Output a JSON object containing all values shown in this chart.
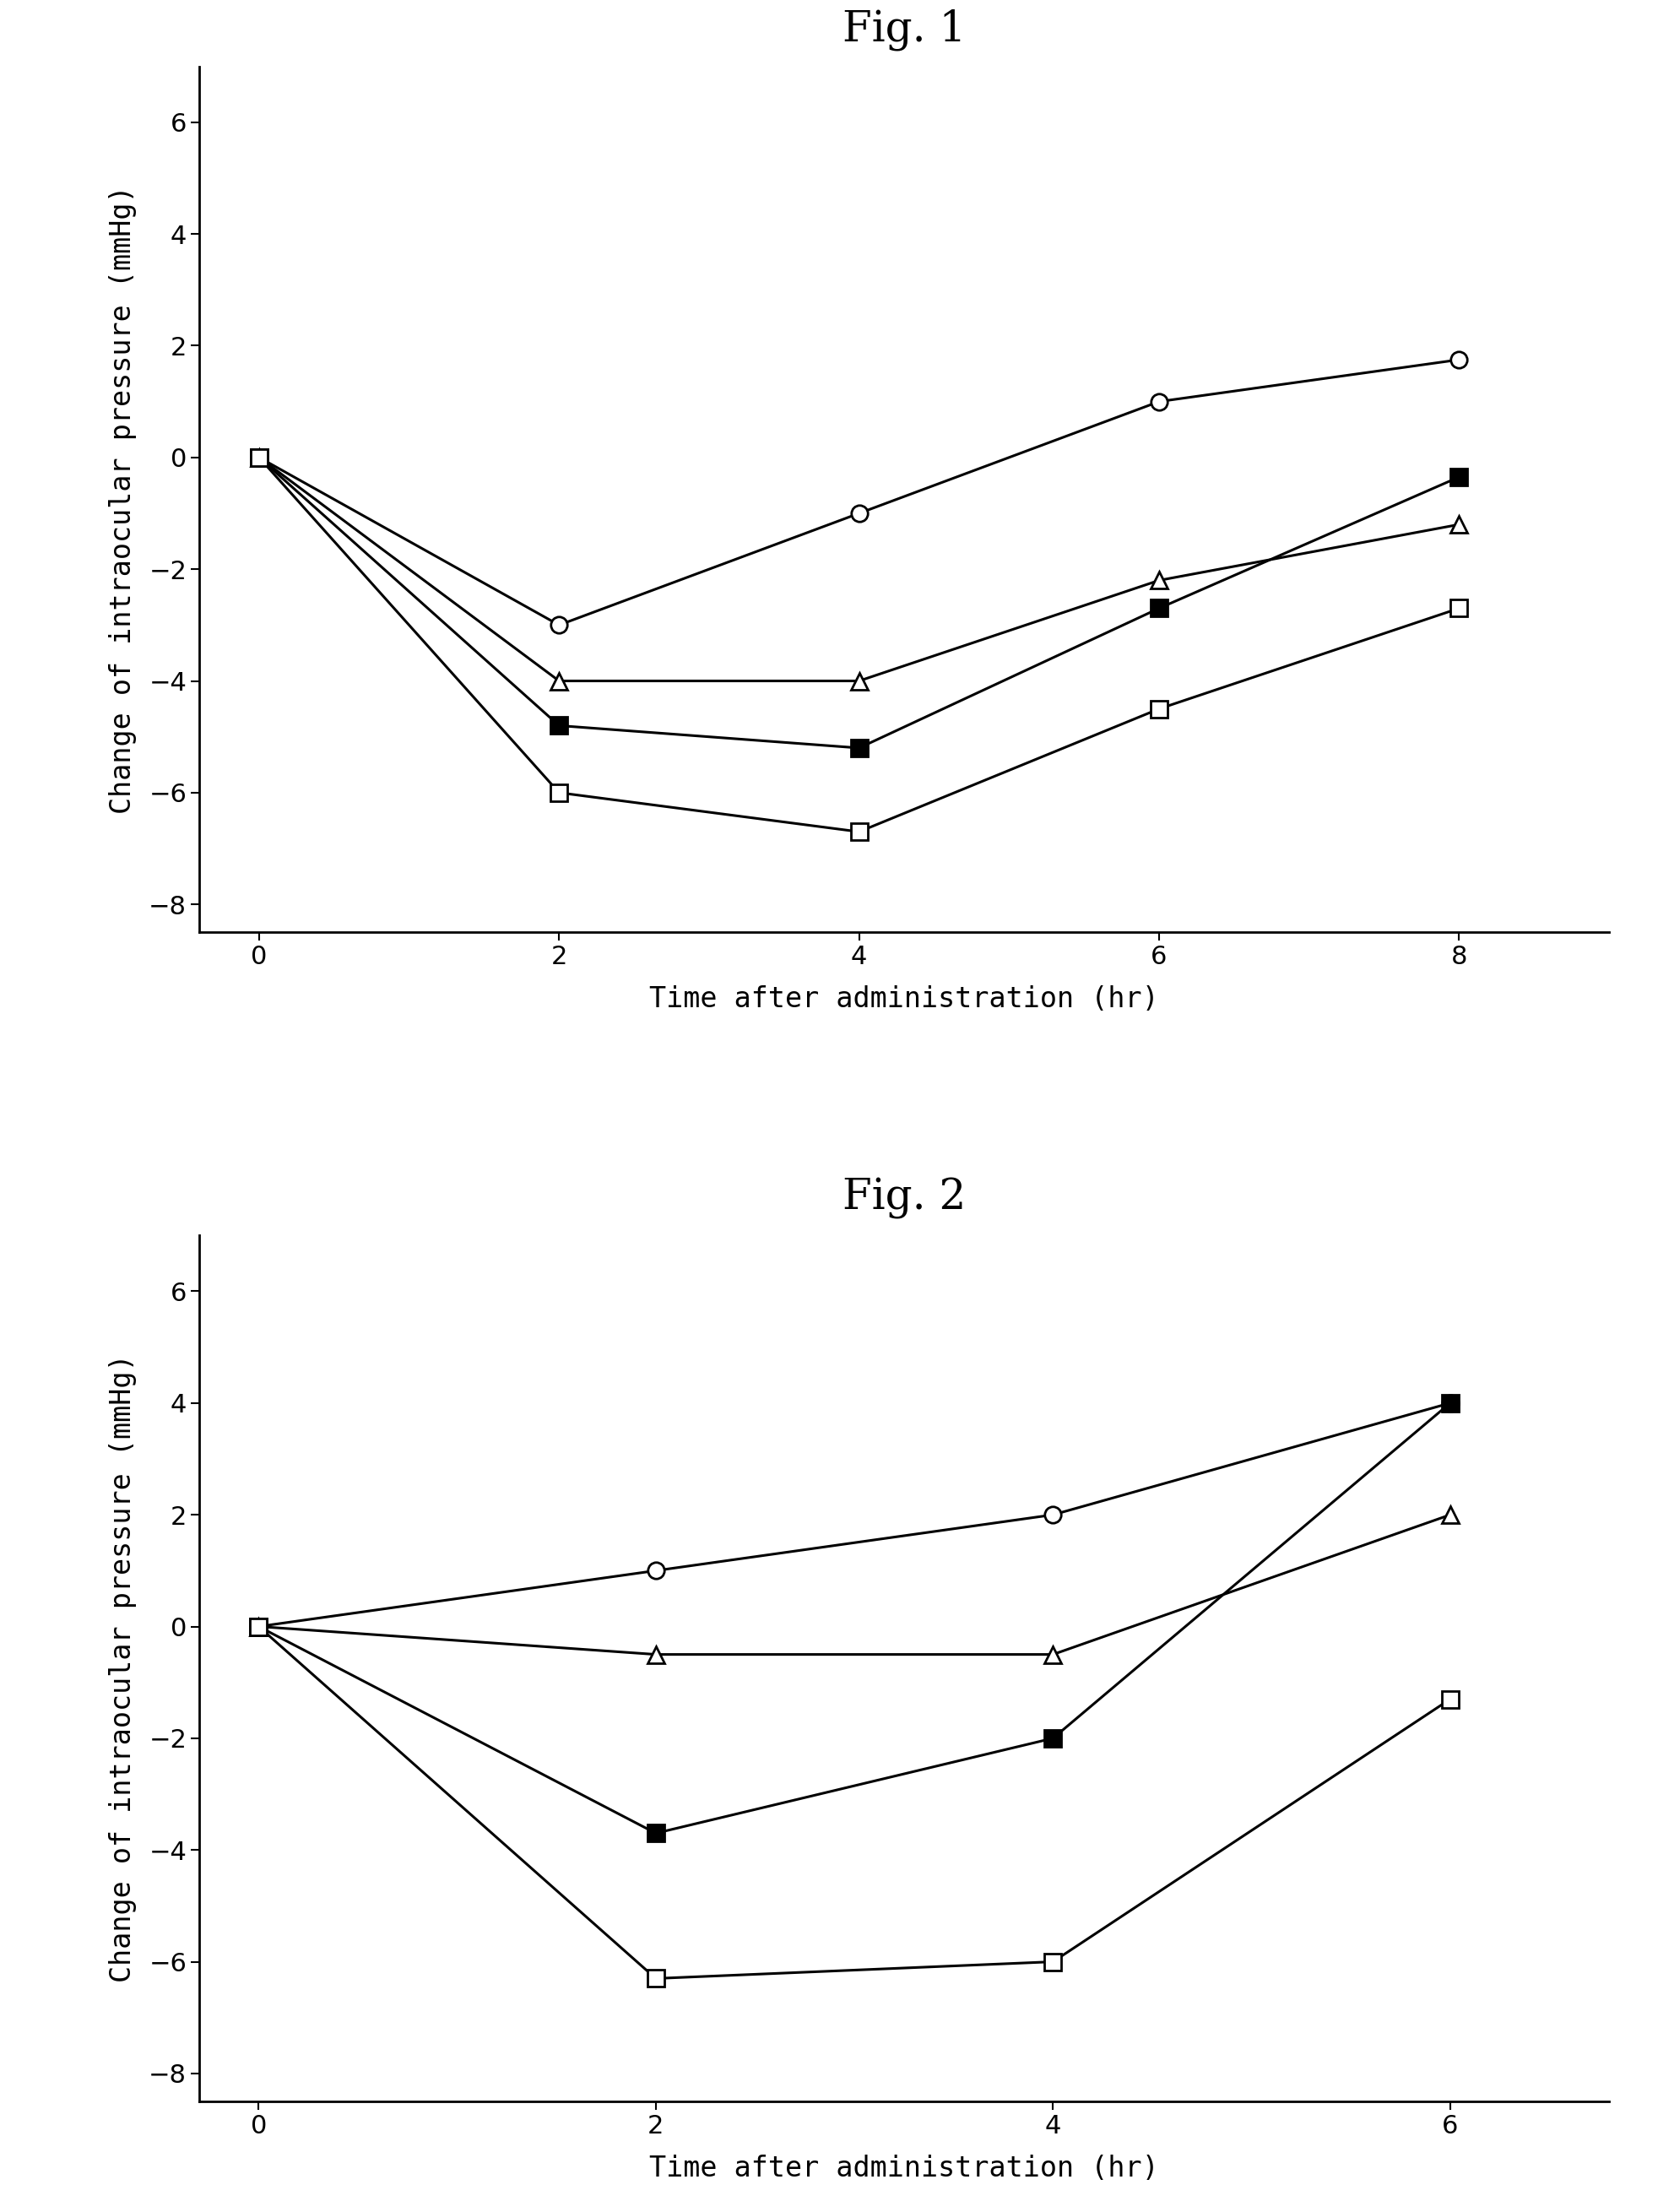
{
  "fig1_title": "Fig. 1",
  "fig2_title": "Fig. 2",
  "ylabel": "Change of intraocular pressure (mmHg)",
  "xlabel": "Time after administration (hr)",
  "fig1": {
    "x": [
      0,
      2,
      4,
      6,
      8
    ],
    "series": [
      {
        "marker": "o",
        "filled": false,
        "x": [
          0,
          2,
          4,
          6,
          8
        ],
        "y": [
          0,
          -3.0,
          -1.0,
          1.0,
          1.75
        ]
      },
      {
        "marker": "^",
        "filled": false,
        "x": [
          0,
          2,
          4,
          6,
          8
        ],
        "y": [
          0,
          -4.0,
          -4.0,
          -2.2,
          -1.2
        ]
      },
      {
        "marker": "s",
        "filled": true,
        "x": [
          0,
          2,
          4,
          6,
          8
        ],
        "y": [
          0,
          -4.8,
          -5.2,
          -2.7,
          -0.35
        ]
      },
      {
        "marker": "s",
        "filled": false,
        "x": [
          0,
          2,
          4,
          6,
          8
        ],
        "y": [
          0,
          -6.0,
          -6.7,
          -4.5,
          -2.7
        ]
      }
    ],
    "ylim": [
      -8.5,
      7.0
    ],
    "yticks": [
      -8,
      -6,
      -4,
      -2,
      0,
      2,
      4,
      6
    ],
    "xlim": [
      -0.4,
      9.0
    ],
    "xticks": [
      0,
      2,
      4,
      6,
      8
    ]
  },
  "fig2": {
    "series": [
      {
        "marker": "o",
        "filled": false,
        "x": [
          0,
          2,
          4,
          6
        ],
        "y": [
          0,
          1.0,
          2.0,
          4.0
        ]
      },
      {
        "marker": "^",
        "filled": false,
        "x": [
          0,
          2,
          4,
          6
        ],
        "y": [
          0,
          -0.5,
          -0.5,
          2.0
        ]
      },
      {
        "marker": "s",
        "filled": true,
        "x": [
          0,
          2,
          4,
          6
        ],
        "y": [
          0,
          -3.7,
          -2.0,
          4.0
        ]
      },
      {
        "marker": "s",
        "filled": false,
        "x": [
          0,
          2,
          4,
          6
        ],
        "y": [
          0,
          -6.3,
          -6.0,
          -1.3
        ]
      }
    ],
    "ylim": [
      -8.5,
      7.0
    ],
    "yticks": [
      -8,
      -6,
      -4,
      -2,
      0,
      2,
      4,
      6
    ],
    "xlim": [
      -0.3,
      6.8
    ],
    "xticks": [
      0,
      2,
      4,
      6
    ]
  },
  "markersize": 14,
  "linewidth": 2.2,
  "title_fontsize": 36,
  "label_fontsize": 24,
  "tick_fontsize": 22,
  "bg_color": "#ffffff",
  "line_color": "#000000"
}
